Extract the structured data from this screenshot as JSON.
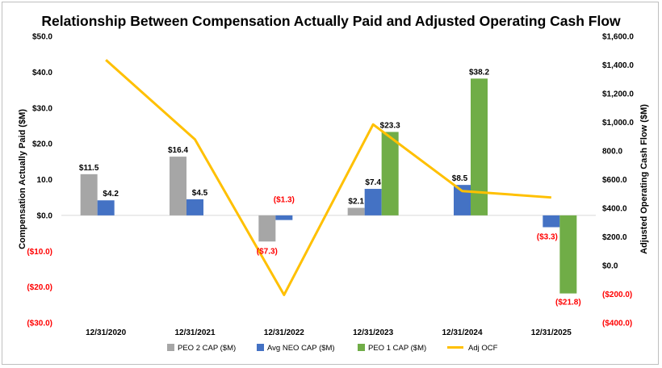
{
  "chart_data": {
    "type": "bar",
    "title": "Relationship Between Compensation Actually Paid and Adjusted Operating Cash Flow",
    "ylabel": "Compensation Actually Paid ($M)",
    "y2label": "Adjusted Operating Cash Flow ($M)",
    "categories": [
      "12/31/2020",
      "12/31/2021",
      "12/31/2022",
      "12/31/2023",
      "12/31/2024",
      "12/31/2025"
    ],
    "ylim": [
      -30,
      50
    ],
    "y2lim": [
      -400,
      1600
    ],
    "yticks": [
      {
        "value": 50,
        "label": "$50.0"
      },
      {
        "value": 40,
        "label": "$40.0"
      },
      {
        "value": 30,
        "label": "$30.0"
      },
      {
        "value": 20,
        "label": "$20.0"
      },
      {
        "value": 10,
        "label": "10.0"
      },
      {
        "value": 0,
        "label": "$0.0"
      },
      {
        "value": -10,
        "label": "($10.0)"
      },
      {
        "value": -20,
        "label": "($20.0)"
      },
      {
        "value": -30,
        "label": "($30.0)"
      }
    ],
    "y2ticks": [
      {
        "value": 1600,
        "label": "$1,600.0"
      },
      {
        "value": 1400,
        "label": "$1,400.0"
      },
      {
        "value": 1200,
        "label": "$1,200.0"
      },
      {
        "value": 1000,
        "label": "$1,000.0"
      },
      {
        "value": 800,
        "label": "800.0"
      },
      {
        "value": 600,
        "label": "$600.0"
      },
      {
        "value": 400,
        "label": "$400.0"
      },
      {
        "value": 200,
        "label": "$200.0"
      },
      {
        "value": 0,
        "label": "$0.0"
      },
      {
        "value": -200,
        "label": "($200.0)"
      },
      {
        "value": -400,
        "label": "($400.0)"
      }
    ],
    "series": [
      {
        "name": "PEO 2 CAP ($M)",
        "type": "bar",
        "color": "#a6a6a6",
        "values": [
          11.5,
          16.4,
          -7.3,
          2.1,
          null,
          null
        ],
        "labels": [
          "$11.5",
          "$16.4",
          "($7.3)",
          "$2.1",
          null,
          null
        ]
      },
      {
        "name": "Avg NEO CAP ($M)",
        "type": "bar",
        "color": "#4472c4",
        "values": [
          4.2,
          4.5,
          -1.3,
          7.4,
          8.5,
          -3.3
        ],
        "labels": [
          "$4.2",
          "$4.5",
          "($1.3)",
          "$7.4",
          "$8.5",
          "($3.3)"
        ]
      },
      {
        "name": "PEO 1 CAP ($M)",
        "type": "bar",
        "color": "#70ad47",
        "values": [
          null,
          null,
          null,
          23.3,
          38.2,
          -21.8
        ],
        "labels": [
          null,
          null,
          null,
          "$23.3",
          "$38.2",
          "($21.8)"
        ]
      },
      {
        "name": "Adj OCF",
        "type": "line",
        "axis": "right",
        "color": "#ffc000",
        "values": [
          1435,
          880,
          -205,
          985,
          520,
          475
        ]
      }
    ],
    "legend": "bottom",
    "colors": {
      "negative_label": "#ff0000",
      "positive_label": "#000000",
      "axis_line": "#d9d9d9"
    }
  }
}
